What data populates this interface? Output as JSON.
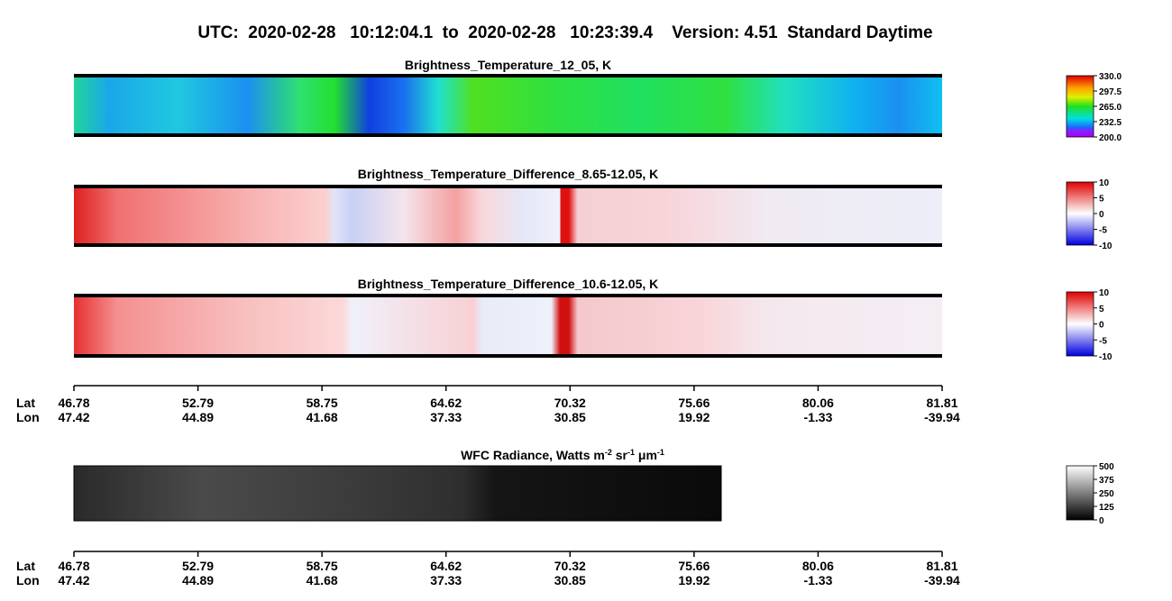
{
  "title": "UTC:  2020-02-28   10:12:04.1  to  2020-02-28   10:23:39.4    Version: 4.51  Standard Daytime",
  "panels": [
    {
      "title": "Brightness_Temperature_12_05, K",
      "colorbar": [
        "330.0",
        "297.5",
        "265.0",
        "232.5",
        "200.0"
      ]
    },
    {
      "title": "Brightness_Temperature_Difference_8.65-12.05, K",
      "colorbar": [
        "10",
        "5",
        "0",
        "-5",
        "-10"
      ]
    },
    {
      "title": "Brightness_Temperature_Difference_10.6-12.05, K",
      "colorbar": [
        "10",
        "5",
        "0",
        "-5",
        "-10"
      ]
    },
    {
      "title_parts": [
        "WFC Radiance, Watts m",
        "-2",
        " sr",
        "-1",
        " μm",
        "-1"
      ],
      "colorbar": [
        "500",
        "375",
        "250",
        "125",
        "0"
      ]
    }
  ],
  "axes": [
    {
      "lat_label": "Lat",
      "lon_label": "Lon",
      "lat": [
        "46.78",
        "52.79",
        "58.75",
        "64.62",
        "70.32",
        "75.66",
        "80.06",
        "81.81"
      ],
      "lon": [
        "47.42",
        "44.89",
        "41.68",
        "37.33",
        "30.85",
        "19.92",
        "-1.33",
        "-39.94"
      ]
    },
    {
      "lat_label": "Lat",
      "lon_label": "Lon",
      "lat": [
        "46.78",
        "52.79",
        "58.75",
        "64.62",
        "70.32",
        "75.66",
        "80.06",
        "81.81"
      ],
      "lon": [
        "47.42",
        "44.89",
        "41.68",
        "37.33",
        "30.85",
        "19.92",
        "-1.33",
        "-39.94"
      ]
    }
  ]
}
